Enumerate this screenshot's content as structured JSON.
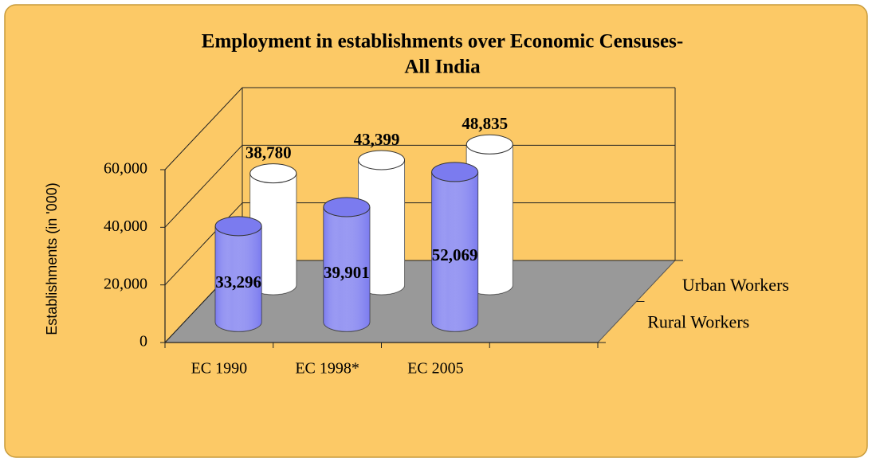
{
  "chart_data": {
    "type": "bar",
    "title": [
      "Employment in establishments over Economic Censuses-",
      "All India"
    ],
    "y_label": "Establishments (in '000)",
    "categories": [
      "EC 1990",
      "EC 1998*",
      "EC 2005"
    ],
    "series": [
      {
        "name": "Rural Workers",
        "color": "#7b7bef",
        "values": [
          33296,
          39901,
          52069
        ],
        "value_labels": [
          "33,296",
          "39,901",
          "52,069"
        ]
      },
      {
        "name": "Urban Workers",
        "color": "#ffffff",
        "values": [
          38780,
          43399,
          48835
        ],
        "value_labels": [
          "38,780",
          "43,399",
          "48,835"
        ]
      }
    ],
    "ylim": [
      0,
      60000
    ],
    "yticks": [
      0,
      {
        "value": 20000,
        "label": "20,000"
      },
      {
        "value": 40000,
        "label": "40,000"
      },
      {
        "value": 60000,
        "label": "60,000"
      }
    ],
    "grid": true,
    "background": "#fcc966"
  }
}
